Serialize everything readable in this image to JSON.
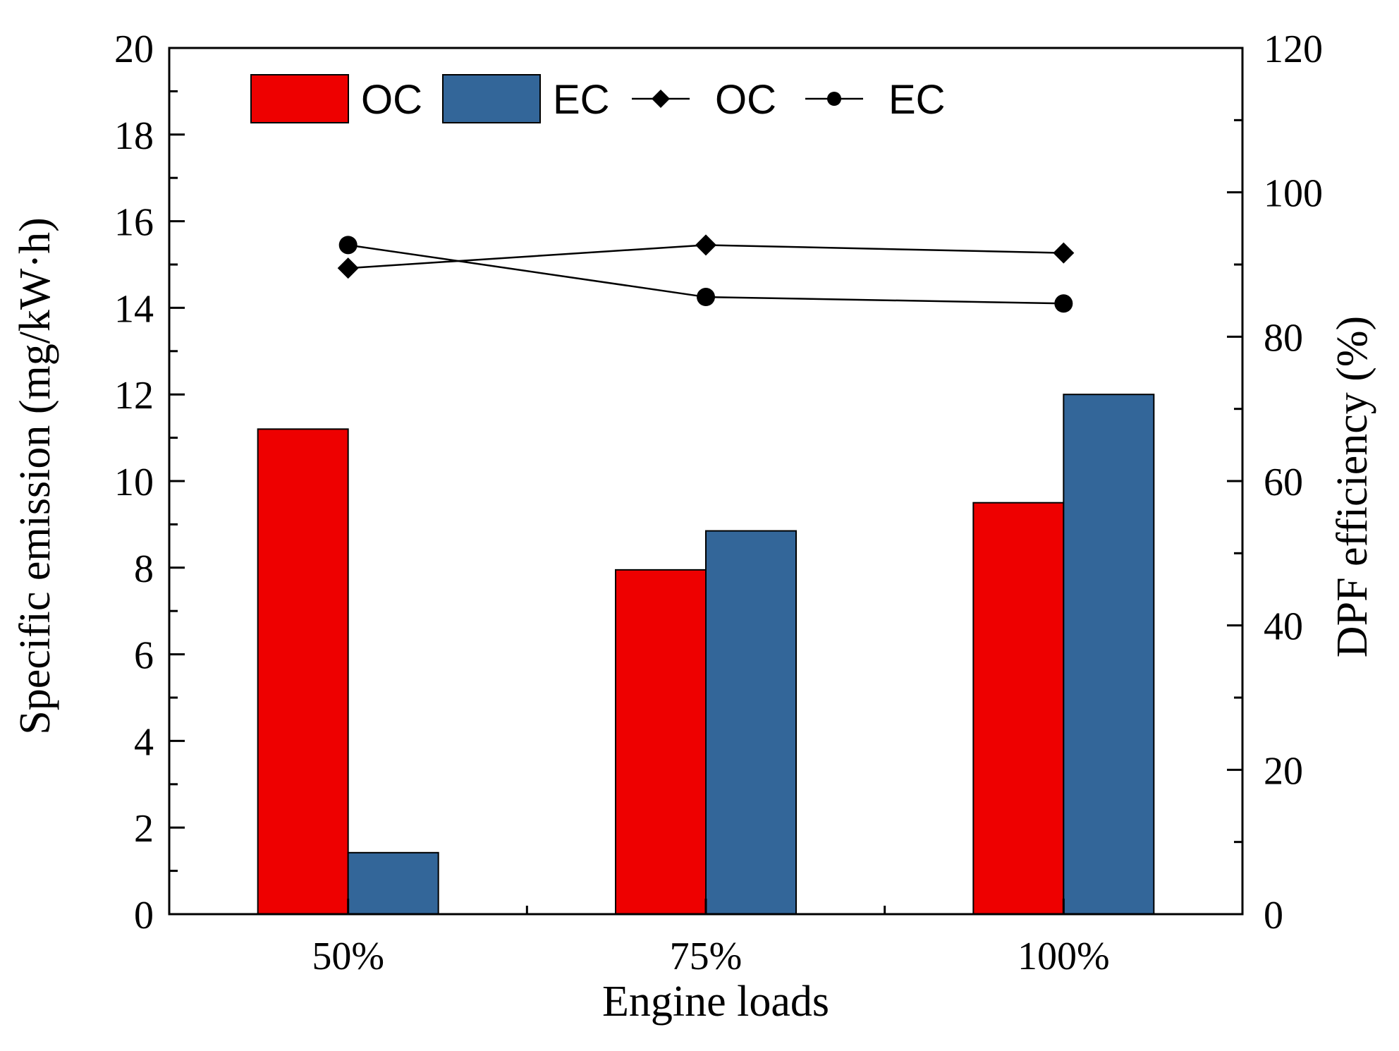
{
  "chart_data": {
    "type": "bar",
    "categories": [
      "50%",
      "75%",
      "100%"
    ],
    "xlabel": "Engine loads",
    "ylabel": "Specific emission (mg/kW·h)",
    "y2label": "DPF efficiency (%)",
    "ylim": [
      0,
      20
    ],
    "y2lim": [
      0,
      120
    ],
    "yticks": [
      0,
      2,
      4,
      6,
      8,
      10,
      12,
      14,
      16,
      18,
      20
    ],
    "y2ticks": [
      0,
      20,
      40,
      60,
      80,
      100,
      120
    ],
    "grid": false,
    "legend_position": "top-left",
    "bar_series": [
      {
        "name": "OC",
        "color": "#ee0000",
        "values": [
          11.2,
          7.95,
          9.5
        ]
      },
      {
        "name": "EC",
        "color": "#336699",
        "values": [
          1.42,
          8.85,
          12.0
        ]
      }
    ],
    "line_series": [
      {
        "name": "OC",
        "marker": "diamond",
        "axis": "right",
        "values": [
          89.5,
          92.7,
          91.6
        ]
      },
      {
        "name": "EC",
        "marker": "circle",
        "axis": "right",
        "values": [
          92.7,
          85.5,
          84.6
        ]
      }
    ]
  }
}
